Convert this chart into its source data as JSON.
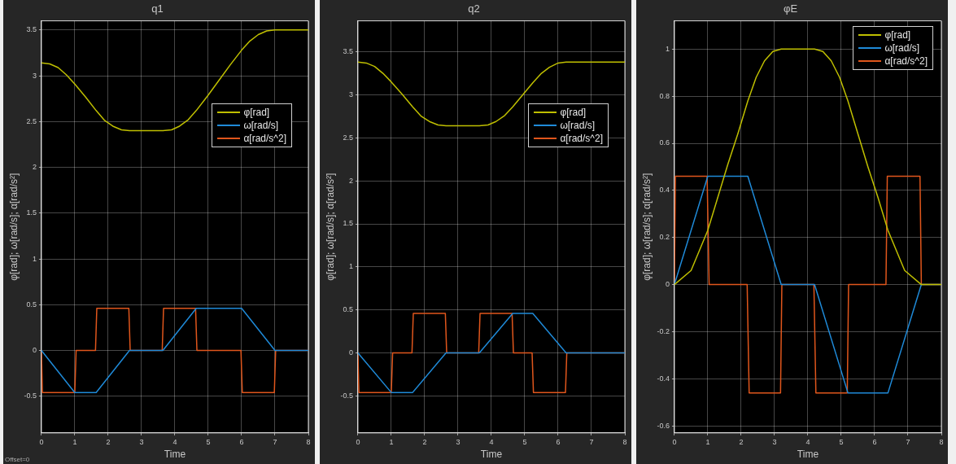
{
  "chart_data": [
    {
      "type": "line",
      "title": "q1",
      "xlabel": "Time",
      "ylabel": "φ[rad]; ω[rad/s]; α[rad/s²]",
      "xlim": [
        0,
        8
      ],
      "xticks": [
        0,
        1,
        2,
        3,
        4,
        5,
        6,
        7,
        8
      ],
      "ylim": [
        -0.9,
        3.6
      ],
      "yticks": [
        -0.5,
        0,
        0.5,
        1,
        1.5,
        2,
        2.5,
        3,
        3.5
      ],
      "grid": true,
      "legend": "right",
      "marker": "none",
      "annotations": [
        "Offset=0"
      ],
      "series": [
        {
          "name": "φ[rad]",
          "color": "#bfbf00",
          "x": [
            0,
            0.25,
            0.5,
            0.75,
            1,
            1.32,
            1.64,
            1.9,
            2.14,
            2.4,
            2.64,
            3.64,
            3.9,
            4.14,
            4.4,
            4.64,
            5,
            5.32,
            5.66,
            6,
            6.25,
            6.5,
            6.75,
            7,
            8
          ],
          "values": [
            3.14,
            3.13,
            3.09,
            3.01,
            2.91,
            2.77,
            2.62,
            2.51,
            2.45,
            2.41,
            2.4,
            2.4,
            2.41,
            2.45,
            2.52,
            2.62,
            2.79,
            2.95,
            3.12,
            3.28,
            3.38,
            3.45,
            3.49,
            3.5,
            3.5
          ]
        },
        {
          "name": "ω[rad/s]",
          "color": "#1f8ad8",
          "x": [
            0,
            1,
            1.64,
            2.64,
            3.64,
            4.64,
            6,
            7,
            8
          ],
          "values": [
            0,
            -0.46,
            -0.46,
            0,
            0,
            0.46,
            0.46,
            0,
            0
          ]
        },
        {
          "name": "α[rad/s^2]",
          "color": "#e0561c",
          "x": [
            0,
            0.03,
            1,
            1.04,
            1.62,
            1.66,
            2.62,
            2.66,
            3.62,
            3.66,
            4.62,
            4.66,
            5.98,
            6.02,
            6.98,
            7.02,
            8
          ],
          "values": [
            0,
            -0.46,
            -0.46,
            0,
            0,
            0.46,
            0.46,
            0,
            0,
            0.46,
            0.46,
            0,
            0,
            -0.46,
            -0.46,
            0,
            0
          ]
        }
      ]
    },
    {
      "type": "line",
      "title": "q2",
      "xlabel": "Time",
      "ylabel": "φ[rad]; ω[rad/s]; α[rad/s²]",
      "xlim": [
        0,
        8
      ],
      "xticks": [
        0,
        1,
        2,
        3,
        4,
        5,
        6,
        7,
        8
      ],
      "ylim": [
        -0.93,
        3.86
      ],
      "yticks": [
        -0.5,
        0,
        0.5,
        1,
        1.5,
        2,
        2.5,
        3,
        3.5
      ],
      "grid": true,
      "legend": "right",
      "marker": "none",
      "series": [
        {
          "name": "φ[rad]",
          "color": "#bfbf00",
          "x": [
            0,
            0.25,
            0.5,
            0.75,
            1,
            1.32,
            1.64,
            1.9,
            2.14,
            2.4,
            2.64,
            3.64,
            3.9,
            4.14,
            4.4,
            4.64,
            4.94,
            5.24,
            5.5,
            5.74,
            6,
            6.24,
            8
          ],
          "values": [
            3.38,
            3.37,
            3.33,
            3.25,
            3.15,
            3.01,
            2.86,
            2.75,
            2.69,
            2.65,
            2.64,
            2.64,
            2.65,
            2.69,
            2.76,
            2.86,
            3,
            3.14,
            3.25,
            3.32,
            3.37,
            3.38,
            3.38
          ]
        },
        {
          "name": "ω[rad/s]",
          "color": "#1f8ad8",
          "x": [
            0,
            1,
            1.64,
            2.64,
            3.64,
            4.64,
            5.24,
            6.24,
            8
          ],
          "values": [
            0,
            -0.46,
            -0.46,
            0,
            0,
            0.46,
            0.46,
            0,
            0
          ]
        },
        {
          "name": "α[rad/s^2]",
          "color": "#e0561c",
          "x": [
            0,
            0.03,
            1,
            1.04,
            1.62,
            1.66,
            2.62,
            2.66,
            3.62,
            3.66,
            4.62,
            4.66,
            5.22,
            5.26,
            6.22,
            6.26,
            8
          ],
          "values": [
            0,
            -0.46,
            -0.46,
            0,
            0,
            0.46,
            0.46,
            0,
            0,
            0.46,
            0.46,
            0,
            0,
            -0.46,
            -0.46,
            0,
            0
          ]
        }
      ]
    },
    {
      "type": "line",
      "title": "φE",
      "xlabel": "Time",
      "ylabel": "φ[rad]; ω[rad/s]; α[rad/s²]",
      "xlim": [
        0,
        8
      ],
      "xticks": [
        0,
        1,
        2,
        3,
        4,
        5,
        6,
        7,
        8
      ],
      "ylim": [
        -0.63,
        1.12
      ],
      "yticks": [
        -0.6,
        -0.4,
        -0.2,
        0,
        0.2,
        0.4,
        0.6,
        0.8,
        1
      ],
      "grid": true,
      "legend": "top right",
      "marker": "none",
      "series": [
        {
          "name": "φ[rad]",
          "color": "#bfbf00",
          "x": [
            0,
            0.5,
            1,
            1.3,
            1.6,
            1.9,
            2.2,
            2.45,
            2.7,
            2.95,
            3.2,
            4.2,
            4.45,
            4.7,
            4.95,
            5.2,
            5.5,
            5.8,
            6.1,
            6.4,
            6.9,
            7.4,
            8
          ],
          "values": [
            0,
            0.06,
            0.23,
            0.37,
            0.51,
            0.64,
            0.78,
            0.88,
            0.95,
            0.99,
            1,
            1,
            0.99,
            0.95,
            0.88,
            0.78,
            0.64,
            0.5,
            0.37,
            0.23,
            0.06,
            0,
            0
          ]
        },
        {
          "name": "ω[rad/s]",
          "color": "#1f8ad8",
          "x": [
            0,
            1,
            2.2,
            3.2,
            4.2,
            5.2,
            6.4,
            7.4,
            8
          ],
          "values": [
            0,
            0.46,
            0.46,
            0,
            0,
            -0.46,
            -0.46,
            0,
            0
          ]
        },
        {
          "name": "α[rad/s^2]",
          "color": "#e0561c",
          "x": [
            0,
            0.03,
            0.98,
            1.04,
            2.18,
            2.24,
            3.18,
            3.22,
            4.18,
            4.24,
            5.18,
            5.22,
            6.34,
            6.38,
            7.36,
            7.4,
            8
          ],
          "values": [
            0,
            0.46,
            0.46,
            0,
            0,
            -0.46,
            -0.46,
            0,
            0,
            -0.46,
            -0.46,
            0,
            0,
            0.46,
            0.46,
            0,
            0
          ]
        }
      ]
    }
  ]
}
